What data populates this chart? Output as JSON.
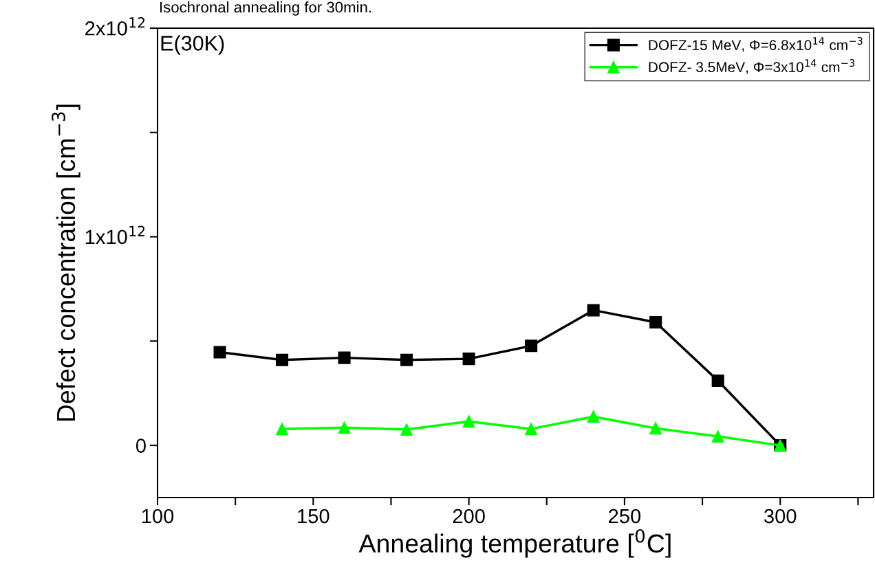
{
  "chart_data": {
    "type": "line",
    "title": "Isochronal annealing for 30min.",
    "xlabel": "Annealing temperature [$^{0}$C]",
    "ylabel": "Defect concentration [cm$^{−3}$]",
    "annotations": [
      "E(30K)"
    ],
    "x": [
      120,
      140,
      160,
      180,
      200,
      220,
      240,
      260,
      280,
      300
    ],
    "series": [
      {
        "name": "DOFZ-15 MeV, Φ=6.8x10$^{14}$ cm$^{−3}$",
        "color": "#000000",
        "marker": "square",
        "values": [
          447000000000.0,
          410000000000.0,
          420000000000.0,
          410000000000.0,
          415000000000.0,
          477000000000.0,
          648000000000.0,
          590000000000.0,
          310000000000.0,
          0
        ]
      },
      {
        "name": "DOFZ- 3.5MeV, Φ=3x10$^{14}$ cm$^{−3}$",
        "color": "#00ff00",
        "marker": "triangle",
        "values": [
          null,
          79000000000.0,
          85000000000.0,
          76000000000.0,
          115000000000.0,
          79000000000.0,
          138000000000.0,
          82000000000.0,
          43000000000.0,
          0
        ]
      }
    ],
    "xlim": [
      100,
      330
    ],
    "xticks": [
      100,
      {
        "value": 125,
        "label": null
      },
      150,
      {
        "value": 175,
        "label": null
      },
      200,
      {
        "value": 225,
        "label": null
      },
      250,
      {
        "value": 275,
        "label": null
      },
      300,
      {
        "value": 325,
        "label": null
      }
    ],
    "ylim": [
      -250000000000.0,
      2000000000000.0
    ],
    "yticks": [
      {
        "value": 0,
        "label": "0"
      },
      {
        "value": 500000000000.0,
        "label": null
      },
      {
        "value": 1000000000000.0,
        "label": "1x10$^{12}$"
      },
      {
        "value": 1500000000000.0,
        "label": null
      },
      {
        "value": 2000000000000.0,
        "label": "2x10$^{12}$"
      }
    ],
    "grid": false,
    "legend": "top right",
    "line_style": "solid"
  }
}
